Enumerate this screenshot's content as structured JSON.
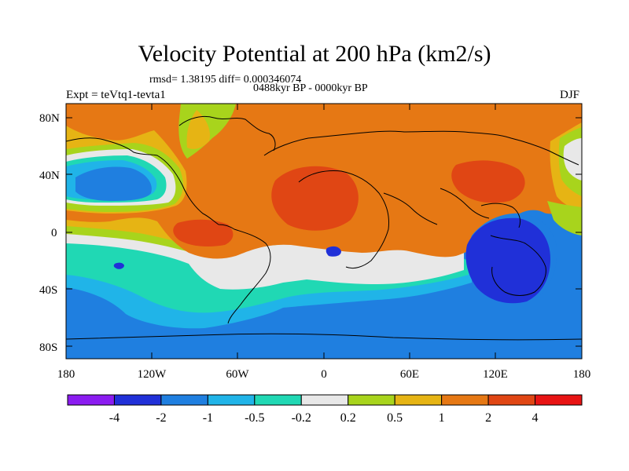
{
  "figure": {
    "title": "Velocity Potential at 200 hPa (km2/s)",
    "stats": "rmsd= 1.38195 diff= 0.000346074",
    "period": "0488kyr BP - 0000kyr BP",
    "expt": "Expt = teVtq1-tevta1",
    "season": "DJF"
  },
  "axes": {
    "lat_labels": [
      "80N",
      "40N",
      "0",
      "40S",
      "80S"
    ],
    "lon_labels": [
      "180",
      "120W",
      "60W",
      "0",
      "60E",
      "120E",
      "180"
    ]
  },
  "colorbar": {
    "labels": [
      "-4",
      "-2",
      "-1",
      "-0.5",
      "-0.2",
      "0.2",
      "0.5",
      "1",
      "2",
      "4"
    ],
    "colors": [
      "#8b1cf0",
      "#2030d8",
      "#1f7fe0",
      "#20b4e8",
      "#20d8b4",
      "#e8e8e8",
      "#a8d41c",
      "#e6b414",
      "#e67814",
      "#e04614",
      "#e81414"
    ]
  },
  "colors": {
    "ocean_low": "#1f7fe0",
    "strong_low": "#2030d8",
    "neutral": "#e8e8e8",
    "high": "#e67814",
    "strong_high": "#e04614",
    "coast": "#000000"
  }
}
